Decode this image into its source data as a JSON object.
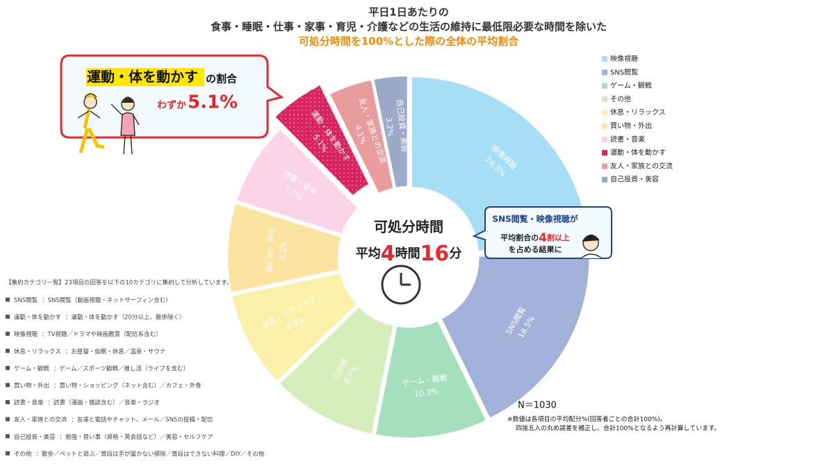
{
  "header": {
    "line1": "平日1日あたりの",
    "line2": "食事・睡眠・仕事・家事・育児・介護などの生活の維持に最低限必要な時間を除いた",
    "line3": "可処分時間を100%とした際の全体の平均割合"
  },
  "chart_data": {
    "type": "donut",
    "categories": [
      "映像視聴",
      "SNS閲覧",
      "ゲーム・観戦",
      "その他",
      "休息・リラックス",
      "買い物・外出",
      "読書・音楽",
      "運動・体を動かす",
      "友人・家族との交流",
      "自己投資・美容"
    ],
    "values": [
      24.3,
      18.5,
      10.3,
      9.7,
      8.9,
      8.2,
      7.7,
      5.1,
      4.1,
      3.2
    ],
    "value_labels": [
      "24.3%",
      "18.5%",
      "10.3%",
      "9.7%",
      "8.9%",
      "8.2%",
      "7.7%",
      "5.1%",
      "4.1%",
      "3.2%"
    ],
    "colors": [
      "#a6def6",
      "#a1b1d8",
      "#a3e0bb",
      "#d6eebc",
      "#fbf0a8",
      "#fde3a0",
      "#fbd5e7",
      "#d8245f",
      "#e99c9c",
      "#9ca9c8"
    ],
    "legend": "top-right"
  },
  "center": {
    "title": "可処分時間",
    "prefix": "平均",
    "hours": "4",
    "hours_unit": "時間",
    "minutes": "16",
    "minutes_unit": "分"
  },
  "callout_left": {
    "highlight": "運動・体を動かす",
    "rest": "の割合",
    "prefix": "わずか",
    "value": "5.1%"
  },
  "callout_right": {
    "line1": "SNS閲覧・映像視聴が",
    "line2_a": "平均割合の",
    "line2_num": "4",
    "line2_b": "割以上",
    "line3": "を占める結果に"
  },
  "footnote": {
    "n": "N＝1030",
    "note1": "※数値は各項目の平均配分%(回答者ごとの合計100%)。",
    "note2": "四捨五入の丸め誤差を補正し、合計100%となるよう再計算しています。"
  },
  "notes": {
    "header": "【集約カテゴリ一覧】23項目の回答を以下の10カテゴリに集約して分析しています。",
    "items": [
      {
        "name": "SNS閲覧",
        "desc": "：SNS閲覧（動画視聴・ネットサーフィン含む）"
      },
      {
        "name": "運動・体を動かす",
        "desc": "：運動・体を動かす（20分以上、散歩除く）"
      },
      {
        "name": "映像視聴",
        "desc": "：TV視聴／ドラマや映画鑑賞（配信系含む）"
      },
      {
        "name": "休息・リラックス",
        "desc": "：お昼寝・仮眠・休息／温泉・サウナ"
      },
      {
        "name": "ゲーム・観戦",
        "desc": "：ゲーム／スポーツ観戦／推し活（ライブを含む）"
      },
      {
        "name": "買い物・外出",
        "desc": "：買い物・ショッピング（ネット含む）／カフェ・外食"
      },
      {
        "name": "読書・音楽",
        "desc": "：読書（漫画・雑誌含む）／音楽・ラジオ"
      },
      {
        "name": "友人・家族との交流",
        "desc": "：友達と電話やチャット、メール／SNSの投稿・配信"
      },
      {
        "name": "自己投資・美容",
        "desc": "：勉強・習い事（資格・英会話など）／美容・セルフケア"
      },
      {
        "name": "その他",
        "desc": "：散歩／ペットと遊ぶ／普段は手が届かない掃除／普段はできない料理／DIY／その他"
      }
    ]
  }
}
